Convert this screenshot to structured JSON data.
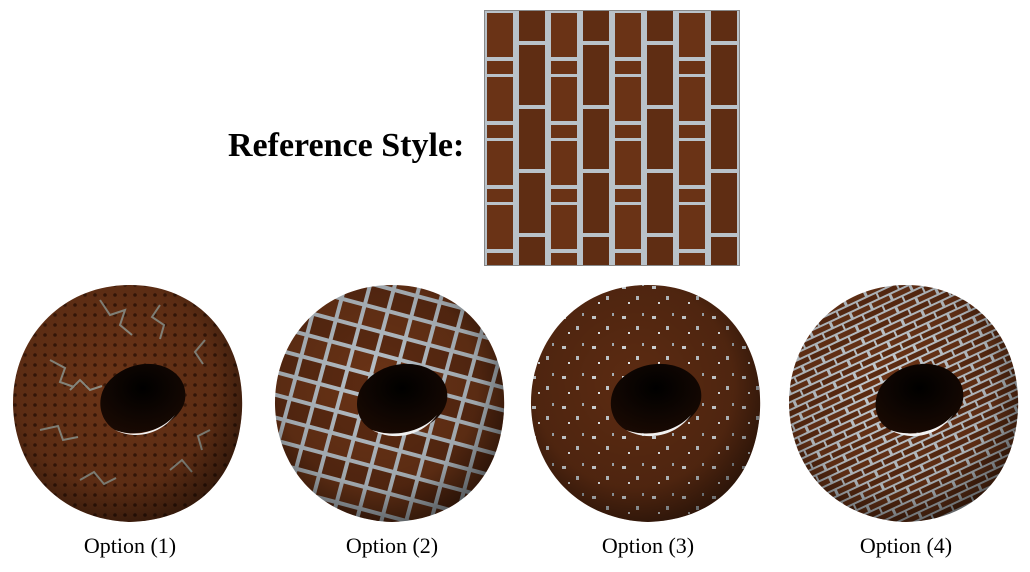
{
  "reference": {
    "label": "Reference Style:"
  },
  "options": [
    {
      "label": "Option (1)"
    },
    {
      "label": "Option (2)"
    },
    {
      "label": "Option (3)"
    },
    {
      "label": "Option (4)"
    }
  ],
  "colors": {
    "wood": "#6b3417",
    "wood_dark": "#3d1b0a",
    "mortar": "#b9c2c9"
  }
}
